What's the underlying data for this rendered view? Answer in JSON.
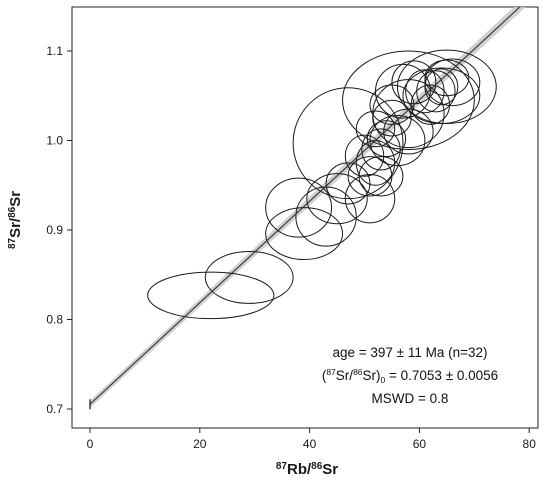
{
  "chart_data": {
    "type": "scatter",
    "subtype": "isochron-error-ellipses",
    "xlabel": {
      "sup1": "87",
      "t1": "Rb/",
      "sup2": "86",
      "t2": "Sr"
    },
    "ylabel": {
      "sup1": "87",
      "t1": "Sr/",
      "sup2": "86",
      "t2": "Sr"
    },
    "xlim": [
      0,
      80
    ],
    "ylim": [
      0.7,
      1.15
    ],
    "x_ticks": [
      0,
      20,
      40,
      60,
      80
    ],
    "y_ticks": [
      0.7,
      0.8,
      0.9,
      1.0,
      1.1
    ],
    "x_tick_labels": [
      "0",
      "20",
      "40",
      "60",
      "80"
    ],
    "y_tick_labels": [
      "0.7",
      "0.8",
      "0.9",
      "1.0",
      "1.1"
    ],
    "grid": false,
    "regression_line": {
      "intercept": 0.7053,
      "slope": 0.00567
    },
    "annotation": {
      "line1": "age = 397 ± 11 Ma (n=32)",
      "line2_open": "(",
      "line2_sup1": "87",
      "line2_mid": "Sr/",
      "line2_sup2": "86",
      "line2_close": "Sr)",
      "line2_sub": "0",
      "line2_value": " = 0.7053 ± 0.0056",
      "line3": "MSWD = 0.8"
    },
    "ellipses": [
      {
        "x": 22.0,
        "y": 0.827,
        "rx": 11.5,
        "ry": 0.026
      },
      {
        "x": 29.0,
        "y": 0.847,
        "rx": 8.0,
        "ry": 0.029
      },
      {
        "x": 39.0,
        "y": 0.896,
        "rx": 7.0,
        "ry": 0.029
      },
      {
        "x": 38.0,
        "y": 0.925,
        "rx": 6.0,
        "ry": 0.033
      },
      {
        "x": 43.0,
        "y": 0.915,
        "rx": 5.5,
        "ry": 0.033
      },
      {
        "x": 45.0,
        "y": 0.935,
        "rx": 5.5,
        "ry": 0.028
      },
      {
        "x": 47.0,
        "y": 0.952,
        "rx": 4.0,
        "ry": 0.023
      },
      {
        "x": 51.0,
        "y": 0.935,
        "rx": 4.5,
        "ry": 0.027
      },
      {
        "x": 51.0,
        "y": 0.96,
        "rx": 4.0,
        "ry": 0.022
      },
      {
        "x": 53.0,
        "y": 0.96,
        "rx": 4.0,
        "ry": 0.022
      },
      {
        "x": 47.0,
        "y": 0.997,
        "rx": 10.0,
        "ry": 0.062
      },
      {
        "x": 50.0,
        "y": 0.983,
        "rx": 3.5,
        "ry": 0.023
      },
      {
        "x": 52.0,
        "y": 0.975,
        "rx": 3.5,
        "ry": 0.025
      },
      {
        "x": 53.0,
        "y": 0.99,
        "rx": 3.5,
        "ry": 0.023
      },
      {
        "x": 54.0,
        "y": 1.002,
        "rx": 3.5,
        "ry": 0.02
      },
      {
        "x": 56.0,
        "y": 1.0,
        "rx": 5.0,
        "ry": 0.028
      },
      {
        "x": 58.0,
        "y": 1.01,
        "rx": 4.5,
        "ry": 0.025
      },
      {
        "x": 52.0,
        "y": 1.013,
        "rx": 3.5,
        "ry": 0.02
      },
      {
        "x": 55.0,
        "y": 1.025,
        "rx": 3.5,
        "ry": 0.02
      },
      {
        "x": 58.0,
        "y": 1.03,
        "rx": 6.5,
        "ry": 0.038
      },
      {
        "x": 55.0,
        "y": 1.04,
        "rx": 4.0,
        "ry": 0.022
      },
      {
        "x": 57.0,
        "y": 1.055,
        "rx": 5.0,
        "ry": 0.03
      },
      {
        "x": 59.0,
        "y": 1.065,
        "rx": 4.0,
        "ry": 0.024
      },
      {
        "x": 58.0,
        "y": 1.045,
        "rx": 12.0,
        "ry": 0.055
      },
      {
        "x": 62.0,
        "y": 1.04,
        "rx": 3.5,
        "ry": 0.022
      },
      {
        "x": 61.0,
        "y": 1.055,
        "rx": 3.5,
        "ry": 0.024
      },
      {
        "x": 63.0,
        "y": 1.055,
        "rx": 3.5,
        "ry": 0.023
      },
      {
        "x": 64.0,
        "y": 1.06,
        "rx": 3.0,
        "ry": 0.02
      },
      {
        "x": 65.0,
        "y": 1.07,
        "rx": 4.0,
        "ry": 0.02
      },
      {
        "x": 66.0,
        "y": 1.065,
        "rx": 5.0,
        "ry": 0.026
      },
      {
        "x": 65.0,
        "y": 1.06,
        "rx": 9.0,
        "ry": 0.041
      },
      {
        "x": 64.0,
        "y": 1.05,
        "rx": 7.0,
        "ry": 0.031
      }
    ]
  }
}
